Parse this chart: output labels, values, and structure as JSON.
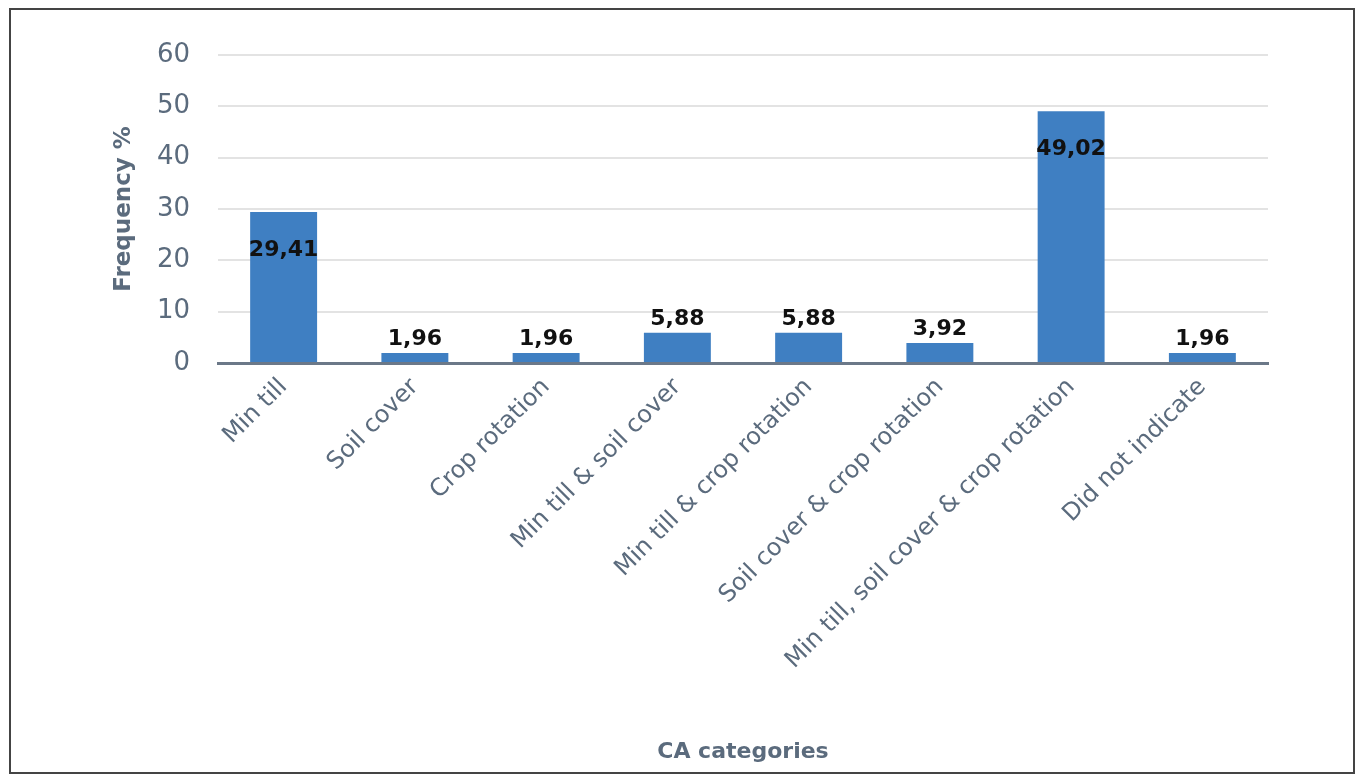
{
  "chart_data": {
    "type": "bar",
    "xlabel": "CA categories",
    "ylabel": "Frequency %",
    "categories": [
      "Min till",
      "Soil cover",
      "Crop rotation",
      "Min till & soil cover",
      "Min till & crop rotation",
      "Soil cover & crop rotation",
      "Min till, soil cover & crop rotation",
      "Did not indicate"
    ],
    "values": [
      29.41,
      1.96,
      1.96,
      5.88,
      5.88,
      3.92,
      49.02,
      1.96
    ],
    "value_labels": [
      "29,41",
      "1,96",
      "1,96",
      "5,88",
      "5,88",
      "3,92",
      "49,02",
      "1,96"
    ],
    "color": "#3f7fc2",
    "ylim": [
      0,
      60
    ],
    "yticks": [
      0,
      10,
      20,
      30,
      40,
      50,
      60
    ],
    "grid": "y"
  }
}
